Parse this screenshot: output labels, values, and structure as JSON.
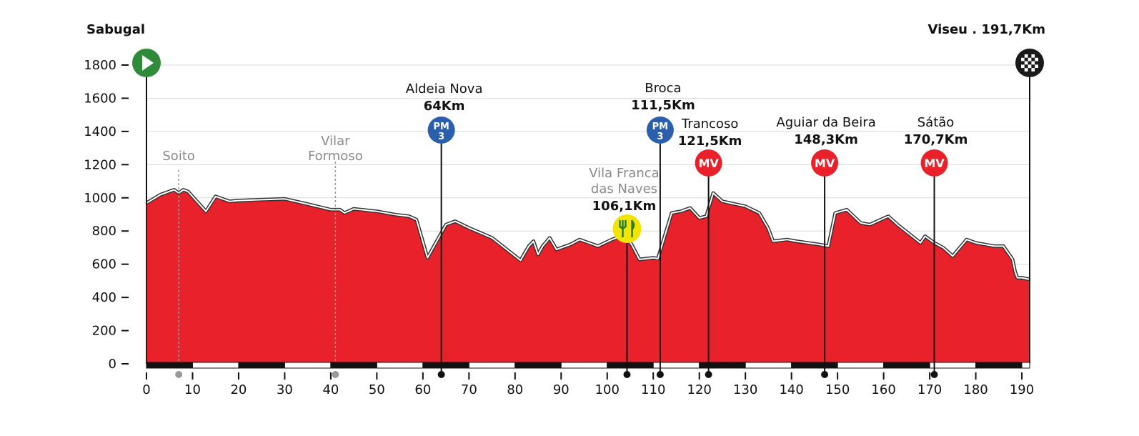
{
  "colors": {
    "profile_fill": "#e8212a",
    "grid": "#d9d9d9",
    "pm_badge": "#2a5fae",
    "mv_badge": "#e8212a",
    "start_badge": "#2e8b3a",
    "feed_badge": "#f2e500",
    "grey_marker": "#9a9a9a",
    "axis": "#111111"
  },
  "header": {
    "start_label": "Sabugal",
    "finish_label": "Viseu . 191,7Km"
  },
  "markers": [
    {
      "type": "town",
      "km": 7,
      "lines": [
        "Soito"
      ],
      "icon": "dot-grey"
    },
    {
      "type": "town",
      "km": 41,
      "lines": [
        "Vilar",
        "Formoso"
      ],
      "icon": "dot-grey"
    },
    {
      "type": "climb",
      "km": 64,
      "name": "Aldeia Nova",
      "km_label": "64Km",
      "badge": [
        "PM",
        "3"
      ],
      "icon": "climb-badge-icon"
    },
    {
      "type": "feed",
      "km": 104.3,
      "lines": [
        "Vila Franca",
        "das Naves"
      ],
      "km_label": "106,1Km",
      "icon": "feed-zone-icon"
    },
    {
      "type": "climb",
      "km": 111.5,
      "name": "Broca",
      "km_label": "111,5Km",
      "badge": [
        "PM",
        "3"
      ],
      "icon": "climb-badge-icon"
    },
    {
      "type": "sprint",
      "km": 122,
      "name": "Trancoso",
      "km_label": "121,5Km",
      "badge": [
        "MV"
      ],
      "icon": "sprint-badge-icon"
    },
    {
      "type": "sprint",
      "km": 147.2,
      "name": "Aguiar da Beira",
      "km_label": "148,3Km",
      "badge": [
        "MV"
      ],
      "icon": "sprint-badge-icon"
    },
    {
      "type": "sprint",
      "km": 171,
      "name": "Sátão",
      "km_label": "170,7Km",
      "badge": [
        "MV"
      ],
      "icon": "sprint-badge-icon"
    }
  ],
  "chart_data": {
    "type": "area",
    "xlim": [
      0,
      191.7
    ],
    "ylim": [
      0,
      1800
    ],
    "x_ticks": [
      0,
      10,
      20,
      30,
      40,
      50,
      60,
      70,
      80,
      90,
      100,
      110,
      120,
      130,
      140,
      150,
      160,
      170,
      180,
      190
    ],
    "y_ticks": [
      0,
      200,
      400,
      600,
      800,
      1000,
      1200,
      1400,
      1600,
      1800
    ],
    "grid": true,
    "start": {
      "km": 0,
      "label": "Sabugal"
    },
    "finish": {
      "km": 191.7,
      "label": "Viseu . 191,7Km"
    },
    "x": [
      0,
      3,
      6,
      7,
      8,
      9,
      12.9,
      15,
      18,
      20,
      25,
      30,
      34,
      40,
      42,
      43,
      45,
      50,
      54,
      57,
      58.6,
      61,
      65,
      67,
      70,
      75,
      81.2,
      83,
      84,
      85,
      86,
      87.5,
      89,
      91,
      92,
      94,
      96,
      98,
      101,
      104,
      105.5,
      107,
      110,
      111,
      114,
      116,
      118,
      120,
      121.5,
      123,
      125,
      130,
      133,
      134.9,
      136,
      139,
      141,
      146,
      148,
      149.5,
      152,
      155,
      157,
      161,
      163,
      168,
      169,
      170,
      171,
      173,
      175,
      178,
      180,
      184,
      186,
      187,
      188,
      188.5,
      189,
      190,
      191.7
    ],
    "y": [
      960,
      1010,
      1040,
      1020,
      1040,
      1030,
      910,
      1000,
      970,
      975,
      980,
      985,
      960,
      920,
      920,
      900,
      925,
      910,
      890,
      880,
      860,
      630,
      830,
      850,
      810,
      750,
      615,
      700,
      730,
      650,
      700,
      750,
      680,
      700,
      710,
      740,
      720,
      700,
      740,
      770,
      700,
      620,
      630,
      625,
      900,
      910,
      930,
      870,
      880,
      1020,
      970,
      940,
      900,
      810,
      730,
      740,
      730,
      710,
      700,
      900,
      920,
      840,
      830,
      880,
      830,
      720,
      760,
      740,
      720,
      690,
      640,
      740,
      720,
      700,
      700,
      660,
      620,
      550,
      510,
      510,
      500
    ]
  }
}
